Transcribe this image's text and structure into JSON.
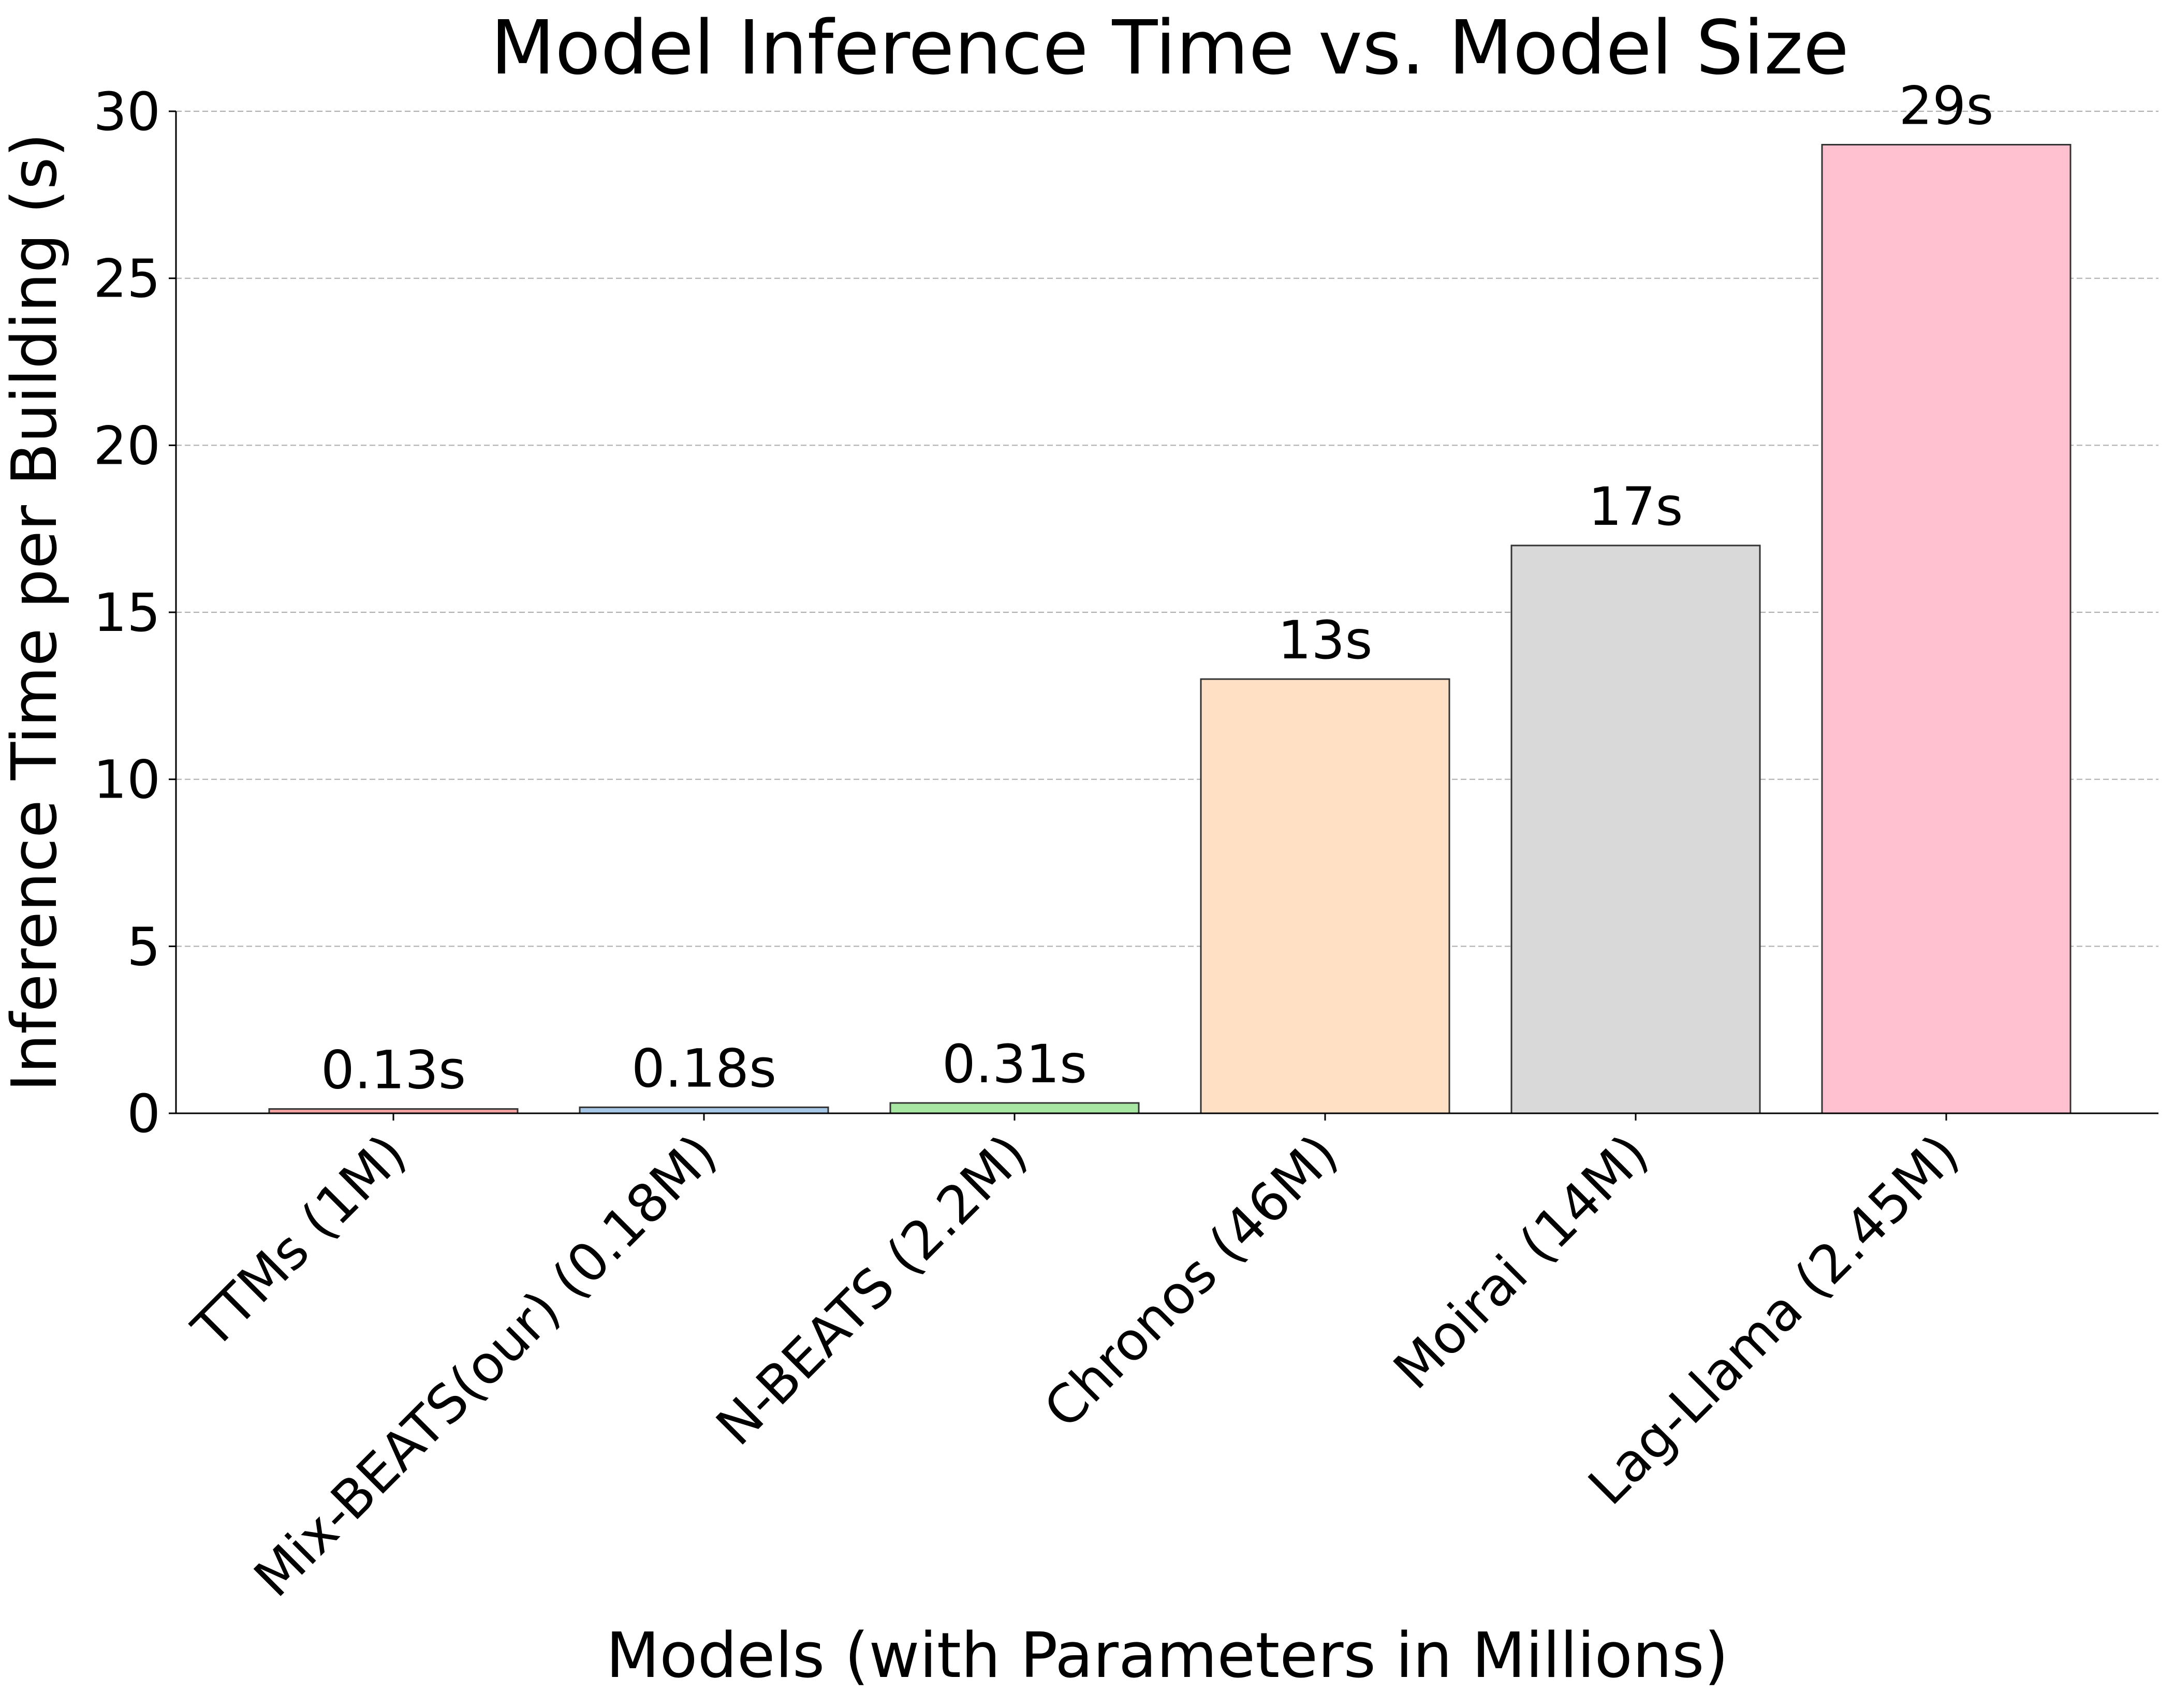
{
  "chart_data": {
    "type": "bar",
    "title": "Model Inference Time vs. Model Size",
    "xlabel": "Models (with Parameters in Millions)",
    "ylabel": "Inference Time per Building (s)",
    "categories": [
      "TTMs (1M)",
      "Mix-BEATS(our) (0.18M)",
      "N-BEATS (2.2M)",
      "Chronos (46M)",
      "Moirai (14M)",
      "Lag-Llama (2.45M)"
    ],
    "values": [
      0.13,
      0.18,
      0.31,
      13,
      17,
      29
    ],
    "data_labels": [
      "0.13s",
      "0.18s",
      "0.31s",
      "13s",
      "17s",
      "29s"
    ],
    "colors": [
      "#f4a3a3",
      "#a7c7e7",
      "#a8e6a3",
      "#ffe0c5",
      "#d9d9d9",
      "#ffc1cf"
    ],
    "ylim": [
      0,
      30
    ],
    "yticks": [
      0,
      5,
      10,
      15,
      20,
      25,
      30
    ],
    "ytick_labels": [
      "0",
      "5",
      "10",
      "15",
      "20",
      "25",
      "30"
    ],
    "grid": "y-dashed",
    "legend": "none"
  }
}
